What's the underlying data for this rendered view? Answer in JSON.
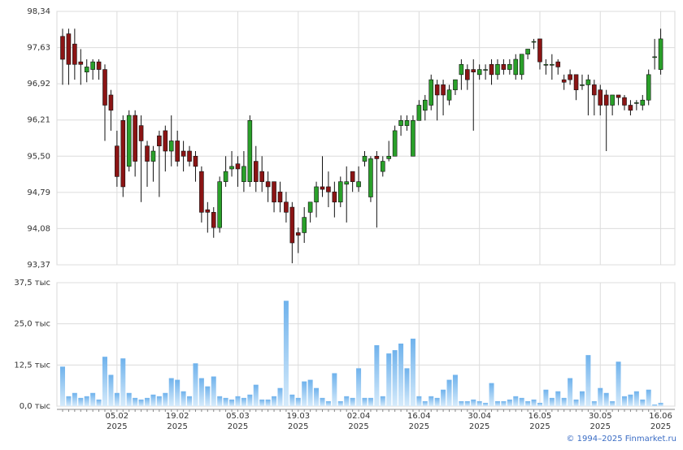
{
  "chart_data": {
    "type": "candlestick",
    "up_color": "#2aa02a",
    "down_color": "#8b1414",
    "volume_color": "#86c0ef",
    "grid": true,
    "ylim": [
      93.37,
      98.34
    ],
    "yticks": [
      {
        "value": 93.37,
        "label": "93,37"
      },
      {
        "value": 94.08,
        "label": "94,08"
      },
      {
        "value": 94.79,
        "label": "94,79"
      },
      {
        "value": 95.5,
        "label": "95,50"
      },
      {
        "value": 96.21,
        "label": "96,21"
      },
      {
        "value": 96.92,
        "label": "96,92"
      },
      {
        "value": 97.63,
        "label": "97,63"
      },
      {
        "value": 98.34,
        "label": "98,34"
      }
    ],
    "volume_ylim": [
      0,
      37.5
    ],
    "volume_yticks": [
      {
        "value": 0,
        "label": "0,0 тыс"
      },
      {
        "value": 12.5,
        "label": "12,5 тыс"
      },
      {
        "value": 25,
        "label": "25,0 тыс"
      },
      {
        "value": 37.5,
        "label": "37,5 тыс"
      }
    ],
    "categories": [
      null,
      null,
      null,
      null,
      null,
      null,
      null,
      null,
      null,
      "05.02\n2025",
      null,
      null,
      null,
      null,
      null,
      null,
      null,
      null,
      null,
      "19.02\n2025",
      null,
      null,
      null,
      null,
      null,
      null,
      null,
      null,
      null,
      "05.03\n2025",
      null,
      null,
      null,
      null,
      null,
      null,
      null,
      null,
      null,
      "19.03\n2025",
      null,
      null,
      null,
      null,
      null,
      null,
      null,
      null,
      null,
      "02.04\n2025",
      null,
      null,
      null,
      null,
      null,
      null,
      null,
      null,
      null,
      "16.04\n2025",
      null,
      null,
      null,
      null,
      null,
      null,
      null,
      null,
      null,
      "30.04\n2025",
      null,
      null,
      null,
      null,
      null,
      null,
      null,
      null,
      null,
      "16.05\n2025",
      null,
      null,
      null,
      null,
      null,
      null,
      null,
      null,
      null,
      "30.05\n2025",
      null,
      null,
      null,
      null,
      null,
      null,
      null,
      null,
      null,
      "16.06\n2025"
    ],
    "open": [
      97.85,
      97.9,
      97.7,
      97.35,
      97.15,
      97.2,
      97.35,
      97.2,
      96.7,
      95.7,
      96.2,
      95.3,
      96.3,
      96.1,
      95.7,
      95.4,
      95.9,
      96.0,
      95.6,
      95.8,
      95.6,
      95.6,
      95.5,
      95.2,
      94.45,
      94.4,
      94.1,
      95.0,
      95.25,
      95.35,
      95.0,
      95.0,
      95.4,
      95.2,
      95.0,
      95.0,
      94.8,
      94.6,
      94.5,
      94.0,
      94.0,
      94.4,
      94.6,
      94.9,
      94.9,
      94.8,
      94.6,
      94.95,
      95.2,
      94.9,
      95.4,
      94.7,
      95.5,
      95.2,
      95.45,
      95.5,
      96.1,
      96.1,
      95.5,
      96.2,
      96.4,
      96.5,
      96.9,
      96.9,
      96.6,
      96.8,
      97.1,
      97.2,
      97.2,
      97.1,
      97.2,
      97.3,
      97.1,
      97.3,
      97.2,
      97.1,
      97.1,
      97.5,
      97.75,
      97.8,
      97.3,
      97.3,
      97.35,
      97.0,
      97.1,
      97.1,
      96.9,
      96.9,
      96.9,
      96.8,
      96.7,
      96.5,
      96.7,
      96.65,
      96.5,
      96.55,
      96.5,
      96.6,
      97.45,
      97.2
    ],
    "high": [
      98.0,
      98.0,
      98.0,
      97.6,
      97.4,
      97.4,
      97.4,
      97.3,
      96.8,
      96.0,
      96.3,
      96.4,
      96.4,
      96.3,
      95.8,
      95.7,
      96.0,
      96.1,
      96.3,
      96.0,
      95.8,
      95.7,
      95.6,
      95.3,
      94.6,
      94.5,
      95.1,
      95.5,
      95.6,
      95.5,
      95.6,
      96.3,
      95.7,
      95.5,
      95.2,
      95.0,
      95.0,
      94.8,
      94.6,
      94.1,
      94.5,
      94.6,
      95.0,
      95.5,
      95.2,
      95.0,
      95.1,
      95.3,
      95.2,
      95.3,
      95.6,
      95.5,
      95.6,
      95.5,
      95.8,
      96.1,
      96.3,
      96.3,
      96.3,
      96.6,
      96.7,
      97.1,
      97.0,
      97.0,
      96.9,
      97.0,
      97.4,
      97.3,
      97.4,
      97.3,
      97.3,
      97.4,
      97.4,
      97.4,
      97.4,
      97.5,
      97.5,
      97.6,
      97.8,
      97.8,
      97.4,
      97.5,
      97.4,
      97.1,
      97.2,
      97.1,
      97.1,
      97.1,
      97.0,
      96.9,
      96.8,
      96.7,
      96.7,
      96.7,
      96.6,
      96.6,
      96.7,
      97.2,
      97.8,
      98.0
    ],
    "low": [
      96.9,
      96.9,
      97.0,
      96.9,
      96.95,
      97.0,
      97.0,
      95.8,
      96.0,
      94.9,
      94.7,
      95.2,
      95.1,
      94.6,
      94.9,
      95.0,
      94.7,
      95.2,
      95.3,
      95.3,
      95.2,
      95.3,
      95.0,
      94.2,
      94.0,
      93.9,
      94.0,
      94.9,
      95.1,
      94.9,
      94.8,
      94.9,
      94.8,
      94.8,
      94.6,
      94.4,
      94.4,
      94.2,
      93.4,
      93.6,
      93.8,
      94.2,
      94.3,
      94.7,
      94.5,
      94.3,
      94.5,
      94.2,
      94.8,
      94.8,
      95.3,
      94.6,
      94.1,
      95.1,
      95.4,
      95.5,
      95.9,
      96.0,
      95.5,
      96.2,
      96.2,
      96.4,
      96.2,
      96.3,
      96.5,
      96.7,
      96.8,
      96.8,
      96.0,
      97.0,
      97.0,
      96.9,
      97.0,
      97.1,
      97.1,
      97.0,
      97.0,
      97.4,
      97.6,
      97.2,
      97.1,
      97.0,
      97.1,
      96.8,
      96.9,
      96.6,
      96.8,
      96.3,
      96.3,
      96.3,
      95.6,
      96.3,
      96.5,
      96.4,
      96.3,
      96.4,
      96.4,
      96.5,
      97.2,
      97.1
    ],
    "close": [
      97.4,
      97.3,
      97.3,
      97.3,
      97.25,
      97.35,
      97.2,
      96.5,
      96.4,
      95.1,
      94.9,
      96.3,
      95.4,
      95.8,
      95.4,
      95.6,
      95.7,
      95.6,
      95.8,
      95.4,
      95.5,
      95.4,
      95.3,
      94.4,
      94.4,
      94.1,
      95.0,
      95.2,
      95.3,
      95.25,
      95.3,
      96.2,
      95.0,
      95.0,
      94.9,
      94.6,
      94.6,
      94.4,
      93.8,
      93.95,
      94.3,
      94.6,
      94.9,
      94.85,
      94.8,
      94.6,
      95.0,
      95.0,
      95.0,
      95.0,
      95.5,
      95.45,
      95.45,
      95.4,
      95.5,
      96.0,
      96.2,
      96.2,
      96.2,
      96.5,
      96.6,
      97.0,
      96.7,
      96.7,
      96.8,
      97.0,
      97.3,
      97.0,
      97.15,
      97.2,
      97.2,
      97.1,
      97.3,
      97.2,
      97.3,
      97.4,
      97.5,
      97.6,
      97.75,
      97.35,
      97.3,
      97.3,
      97.25,
      96.95,
      97.0,
      96.8,
      96.9,
      97.0,
      96.7,
      96.5,
      96.5,
      96.7,
      96.65,
      96.5,
      96.4,
      96.55,
      96.6,
      97.1,
      97.45,
      97.8
    ],
    "volume": [
      12,
      3,
      4,
      2.5,
      3,
      4,
      2,
      15,
      9.5,
      4,
      14.5,
      4,
      2.5,
      2,
      2.5,
      3.5,
      3,
      4,
      8.5,
      8,
      4.5,
      3,
      13,
      8.5,
      6,
      9,
      3,
      2.5,
      2,
      3,
      2.5,
      3.5,
      6.5,
      2,
      2,
      3,
      5.5,
      32,
      3.5,
      2.5,
      7.5,
      8,
      5.5,
      2.5,
      1.5,
      10,
      1.5,
      3,
      2.5,
      11.5,
      2.5,
      2.5,
      18.5,
      3,
      16,
      17,
      19,
      11.5,
      20.5,
      3,
      1.5,
      3,
      2.5,
      5,
      8,
      9.5,
      1.5,
      1.5,
      2,
      1.5,
      1,
      7,
      1.5,
      1.5,
      2,
      3,
      2.5,
      1.5,
      2,
      1,
      5,
      2.5,
      4.5,
      2.5,
      8.5,
      2,
      4.5,
      15.5,
      1.5,
      5.5,
      4,
      1.5,
      13.5,
      3,
      3.5,
      4.5,
      2,
      5,
      0.5,
      1
    ]
  },
  "footer": {
    "copyright": "© 1994–2025 Finmarket.ru"
  }
}
